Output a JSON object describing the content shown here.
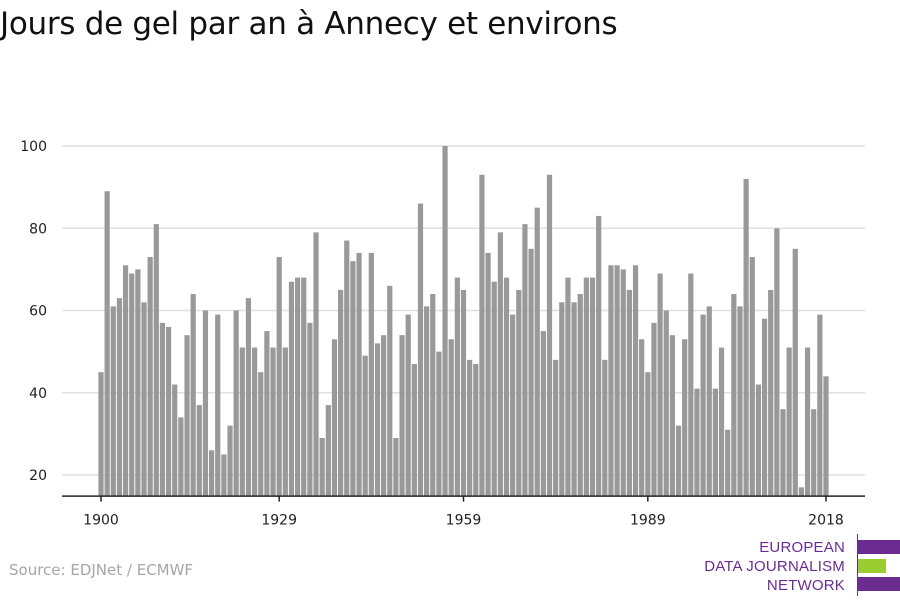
{
  "title": "Jours de gel par an à Annecy et environs",
  "source": "Source: EDJNet / ECMWF",
  "logo": {
    "lines": [
      "EUROPEAN",
      "DATA JOURNALISM",
      "NETWORK"
    ],
    "colors": {
      "purple": "#6a2c91",
      "green": "#9acd32"
    }
  },
  "chart_data": {
    "type": "bar",
    "title": "Jours de gel par an à Annecy et environs",
    "xlabel": "",
    "ylabel": "",
    "ylim": [
      15,
      100
    ],
    "yticks": [
      20,
      40,
      60,
      80,
      100
    ],
    "xticks": [
      1900,
      1929,
      1959,
      1989,
      2018
    ],
    "grid": true,
    "bar_color": "#999999",
    "start_year": 1900,
    "values": [
      45,
      89,
      61,
      63,
      71,
      69,
      70,
      62,
      73,
      81,
      57,
      56,
      42,
      34,
      54,
      64,
      37,
      60,
      26,
      59,
      25,
      32,
      60,
      51,
      63,
      51,
      45,
      55,
      51,
      73,
      51,
      67,
      68,
      68,
      57,
      79,
      29,
      37,
      53,
      65,
      77,
      72,
      74,
      49,
      74,
      52,
      54,
      66,
      29,
      54,
      59,
      47,
      86,
      61,
      64,
      50,
      100,
      53,
      68,
      65,
      48,
      47,
      93,
      74,
      67,
      79,
      68,
      59,
      65,
      81,
      75,
      85,
      55,
      93,
      48,
      62,
      68,
      62,
      64,
      68,
      68,
      83,
      48,
      71,
      71,
      70,
      65,
      71,
      53,
      45,
      57,
      69,
      60,
      54,
      32,
      53,
      69,
      41,
      59,
      61,
      41,
      51,
      31,
      64,
      61,
      92,
      73,
      42,
      58,
      65,
      80,
      36,
      51,
      75,
      17,
      51,
      36,
      59,
      44
    ]
  }
}
